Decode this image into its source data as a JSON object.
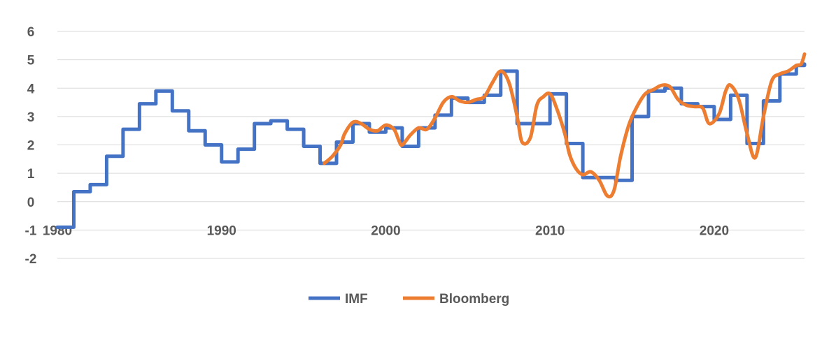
{
  "chart_data": {
    "type": "line",
    "title": "",
    "xlabel": "",
    "ylabel": "",
    "xlim": [
      1980,
      2025.5
    ],
    "ylim": [
      -2,
      6
    ],
    "x_ticks": [
      1980,
      1990,
      2000,
      2010,
      2020
    ],
    "y_ticks": [
      -2,
      -1,
      0,
      1,
      2,
      3,
      4,
      5,
      6
    ],
    "grid": true,
    "legend_position": "bottom",
    "series": [
      {
        "name": "IMF",
        "color": "#4472C4",
        "step": true,
        "points": [
          [
            1980,
            -0.9
          ],
          [
            1980.75,
            -0.9
          ],
          [
            1981,
            0.35
          ],
          [
            1982,
            0.6
          ],
          [
            1983,
            1.6
          ],
          [
            1984,
            2.55
          ],
          [
            1985,
            3.45
          ],
          [
            1986,
            3.9
          ],
          [
            1987,
            3.2
          ],
          [
            1988,
            2.5
          ],
          [
            1989,
            2.0
          ],
          [
            1990,
            1.4
          ],
          [
            1991,
            1.85
          ],
          [
            1992,
            2.75
          ],
          [
            1993,
            2.85
          ],
          [
            1994,
            2.55
          ],
          [
            1995,
            1.95
          ],
          [
            1996,
            1.35
          ],
          [
            1997,
            2.1
          ],
          [
            1998,
            2.75
          ],
          [
            1999,
            2.45
          ],
          [
            2000,
            2.6
          ],
          [
            2001,
            1.95
          ],
          [
            2002,
            2.6
          ],
          [
            2003,
            3.05
          ],
          [
            2004,
            3.65
          ],
          [
            2005,
            3.5
          ],
          [
            2006,
            3.75
          ],
          [
            2007,
            4.6
          ],
          [
            2008,
            2.75
          ],
          [
            2010,
            3.8
          ],
          [
            2011,
            2.05
          ],
          [
            2012,
            0.85
          ],
          [
            2014,
            0.75
          ],
          [
            2015,
            3.0
          ],
          [
            2016,
            3.9
          ],
          [
            2017,
            4.0
          ],
          [
            2018,
            3.45
          ],
          [
            2019,
            3.35
          ],
          [
            2020,
            2.9
          ],
          [
            2021,
            3.75
          ],
          [
            2022,
            2.05
          ],
          [
            2023,
            3.55
          ],
          [
            2024,
            4.5
          ],
          [
            2025,
            4.8
          ],
          [
            2025.5,
            4.85
          ]
        ]
      },
      {
        "name": "Bloomberg",
        "color": "#ED7D31",
        "step": false,
        "points": [
          [
            1996.25,
            1.35
          ],
          [
            1996.75,
            1.6
          ],
          [
            1997.25,
            2.0
          ],
          [
            1997.5,
            2.4
          ],
          [
            1998,
            2.8
          ],
          [
            1998.5,
            2.75
          ],
          [
            1999,
            2.55
          ],
          [
            1999.5,
            2.5
          ],
          [
            2000,
            2.7
          ],
          [
            2000.5,
            2.55
          ],
          [
            2000.8,
            2.15
          ],
          [
            2001,
            2.0
          ],
          [
            2001.5,
            2.35
          ],
          [
            2002,
            2.6
          ],
          [
            2002.5,
            2.55
          ],
          [
            2003,
            2.95
          ],
          [
            2003.5,
            3.5
          ],
          [
            2004,
            3.7
          ],
          [
            2004.5,
            3.55
          ],
          [
            2005,
            3.5
          ],
          [
            2005.5,
            3.6
          ],
          [
            2006,
            3.7
          ],
          [
            2006.5,
            4.2
          ],
          [
            2007,
            4.6
          ],
          [
            2007.5,
            4.2
          ],
          [
            2008,
            3.0
          ],
          [
            2008.3,
            2.1
          ],
          [
            2008.8,
            2.25
          ],
          [
            2009.2,
            3.4
          ],
          [
            2009.6,
            3.7
          ],
          [
            2010,
            3.8
          ],
          [
            2010.4,
            3.3
          ],
          [
            2010.9,
            2.4
          ],
          [
            2011.2,
            1.65
          ],
          [
            2011.6,
            1.15
          ],
          [
            2012,
            0.95
          ],
          [
            2012.5,
            1.05
          ],
          [
            2013,
            0.75
          ],
          [
            2013.5,
            0.2
          ],
          [
            2013.9,
            0.4
          ],
          [
            2014.3,
            1.6
          ],
          [
            2014.8,
            2.7
          ],
          [
            2015.3,
            3.35
          ],
          [
            2015.8,
            3.8
          ],
          [
            2016.3,
            3.95
          ],
          [
            2016.8,
            4.1
          ],
          [
            2017.3,
            4.05
          ],
          [
            2017.8,
            3.6
          ],
          [
            2018.3,
            3.4
          ],
          [
            2018.8,
            3.35
          ],
          [
            2019.3,
            3.3
          ],
          [
            2019.7,
            2.75
          ],
          [
            2020.3,
            3.1
          ],
          [
            2020.7,
            3.9
          ],
          [
            2021,
            4.1
          ],
          [
            2021.5,
            3.6
          ],
          [
            2022,
            2.4
          ],
          [
            2022.5,
            1.55
          ],
          [
            2023,
            3.0
          ],
          [
            2023.5,
            4.25
          ],
          [
            2024,
            4.5
          ],
          [
            2024.5,
            4.6
          ],
          [
            2025,
            4.8
          ],
          [
            2025.3,
            4.85
          ],
          [
            2025.5,
            5.2
          ]
        ]
      }
    ]
  }
}
